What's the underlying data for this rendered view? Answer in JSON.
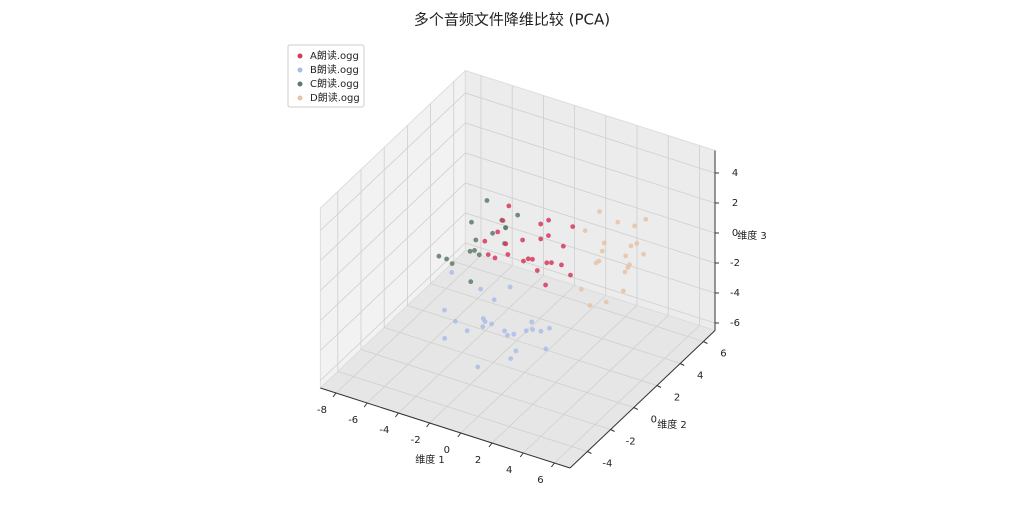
{
  "chart_data": {
    "type": "scatter3d",
    "title": "多个音频文件降维比较 (PCA)",
    "xlabel": "维度 1",
    "ylabel": "维度 2",
    "zlabel": "维度 3",
    "xlim": [
      -9,
      7
    ],
    "ylim": [
      -5.5,
      7
    ],
    "zlim": [
      -6.5,
      5.5
    ],
    "xticks": [
      -8,
      -6,
      -4,
      -2,
      0,
      2,
      4,
      6
    ],
    "yticks": [
      -4,
      -2,
      0,
      2,
      4,
      6
    ],
    "zticks": [
      -6,
      -4,
      -2,
      0,
      2,
      4
    ],
    "grid": true,
    "legend": "upper left",
    "series": [
      {
        "name": "D朗读.ogg",
        "color": "#e8c3a6",
        "x": [
          2.5,
          3.6,
          1.8,
          4.2,
          2.9,
          3.2,
          1.5,
          4.8,
          2.2,
          3.9,
          2.7,
          3.4,
          1.9,
          4.4,
          3.0,
          2.4,
          3.8,
          2.0,
          4.0,
          3.1
        ],
        "y": [
          3.5,
          4.2,
          2.8,
          3.0,
          5.0,
          2.4,
          4.4,
          3.8,
          3.2,
          5.2,
          2.0,
          4.6,
          3.9,
          2.6,
          3.0,
          4.8,
          3.6,
          2.2,
          4.1,
          5.5
        ],
        "z": [
          0.4,
          -1.2,
          1.5,
          -0.6,
          -2.2,
          0.9,
          -1.8,
          0.2,
          -0.8,
          1.2,
          -2.6,
          -0.3,
          2.0,
          -1.5,
          -3.0,
          0.8,
          -0.1,
          -1.9,
          1.6,
          -0.9
        ]
      },
      {
        "name": "B朗读.ogg",
        "color": "#aabce6",
        "x": [
          -1.0,
          0.5,
          -2.2,
          1.2,
          -0.3,
          -3.1,
          0.9,
          -1.6,
          2.0,
          -0.8,
          -2.6,
          0.2,
          1.6,
          -1.3,
          -0.1,
          -2.0,
          0.7,
          -3.5,
          1.0,
          -0.6,
          0.3,
          -1.8,
          2.4,
          -4.0
        ],
        "y": [
          -1.5,
          -2.4,
          -0.6,
          -1.0,
          -3.2,
          -1.8,
          0.2,
          -2.8,
          -2.0,
          -0.4,
          -3.4,
          -1.2,
          -2.9,
          0.5,
          -3.9,
          -1.1,
          -0.8,
          -2.2,
          0.8,
          -2.6,
          -1.6,
          -0.2,
          -1.4,
          -0.9
        ],
        "z": [
          -2.5,
          -1.8,
          -3.2,
          -2.0,
          -1.2,
          -2.8,
          -3.6,
          -2.2,
          -1.5,
          -4.0,
          -2.6,
          -3.0,
          -2.4,
          -1.6,
          -3.3,
          -0.8,
          -2.9,
          -1.9,
          -3.8,
          -1.4,
          -4.3,
          -2.1,
          -3.1,
          -0.5
        ]
      },
      {
        "name": "C朗读.ogg",
        "color": "#5e7a6a",
        "x": [
          -3.5,
          -2.8,
          -4.2,
          -3.0,
          -2.2,
          -3.8,
          -4.6,
          -2.6,
          -3.3,
          -4.0,
          -2.4,
          -3.6,
          -5.0,
          -2.9,
          -3.9,
          -4.4
        ],
        "y": [
          0.5,
          1.8,
          -0.6,
          2.4,
          0.2,
          1.2,
          -1.2,
          2.9,
          -0.2,
          0.8,
          1.5,
          3.2,
          0.0,
          -0.8,
          2.0,
          1.6
        ],
        "z": [
          0.8,
          1.4,
          -0.2,
          0.4,
          1.9,
          -0.8,
          0.6,
          1.0,
          -1.4,
          1.6,
          0.2,
          -0.4,
          -0.6,
          1.2,
          2.2,
          -1.0
        ]
      },
      {
        "name": "A朗读.ogg",
        "color": "#d63a5e",
        "x": [
          -2.1,
          -0.5,
          0.8,
          -1.6,
          0.2,
          -3.0,
          1.5,
          -0.9,
          -2.4,
          0.6,
          -1.2,
          1.1,
          -0.3,
          -2.8,
          0.4,
          -1.8,
          1.9,
          -0.7,
          -1.4,
          0.9,
          -2.2,
          0.0,
          -1.0,
          1.3
        ],
        "y": [
          1.2,
          0.5,
          2.1,
          -0.4,
          1.8,
          0.9,
          0.3,
          2.6,
          -0.2,
          1.0,
          3.0,
          -0.8,
          1.5,
          1.9,
          2.8,
          0.1,
          1.4,
          -0.5,
          2.2,
          0.7,
          1.6,
          -0.1,
          3.4,
          2.4
        ],
        "z": [
          0.5,
          1.8,
          -0.6,
          0.9,
          2.4,
          -0.3,
          1.1,
          0.2,
          1.6,
          -1.2,
          0.8,
          2.0,
          -0.9,
          1.3,
          0.0,
          2.2,
          -0.4,
          1.5,
          -1.0,
          0.6,
          2.7,
          1.0,
          -0.2,
          1.9
        ]
      }
    ]
  }
}
